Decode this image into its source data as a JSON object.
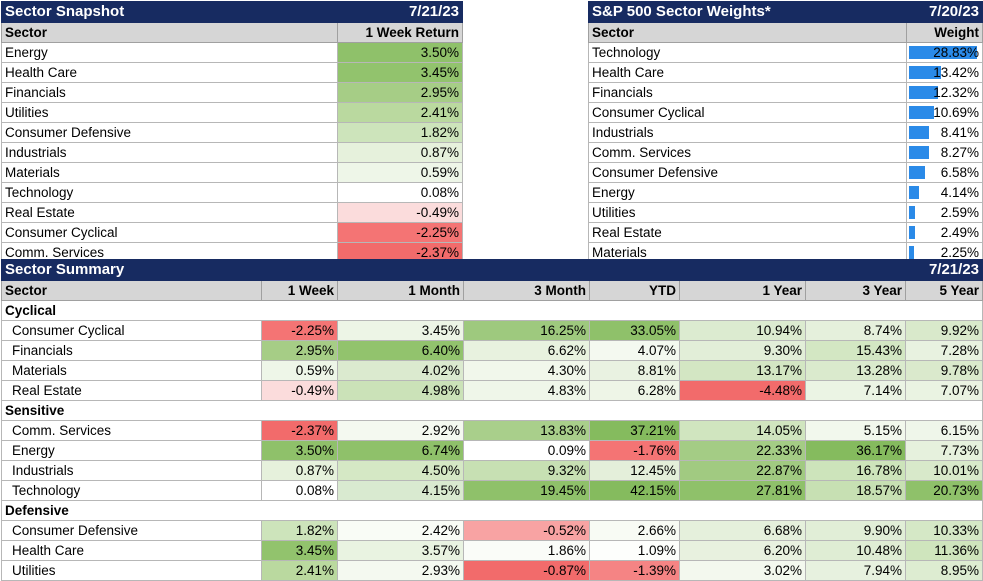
{
  "snapshot": {
    "title": "Sector Snapshot",
    "date": "7/21/23",
    "col_sector": "Sector",
    "col_return": "1 Week Return",
    "rows": [
      {
        "sector": "Energy",
        "value": "3.50%",
        "color": "#8fc16a"
      },
      {
        "sector": "Health Care",
        "value": "3.45%",
        "color": "#92c36d"
      },
      {
        "sector": "Financials",
        "value": "2.95%",
        "color": "#a6cd86"
      },
      {
        "sector": "Utilities",
        "value": "2.41%",
        "color": "#bad99f"
      },
      {
        "sector": "Consumer Defensive",
        "value": "1.82%",
        "color": "#cde4bb"
      },
      {
        "sector": "Industrials",
        "value": "0.87%",
        "color": "#e6f1dc"
      },
      {
        "sector": "Materials",
        "value": "0.59%",
        "color": "#eef6e8"
      },
      {
        "sector": "Technology",
        "value": "0.08%",
        "color": "#ffffff"
      },
      {
        "sector": "Real Estate",
        "value": "-0.49%",
        "color": "#fbdcdc"
      },
      {
        "sector": "Consumer Cyclical",
        "value": "-2.25%",
        "color": "#f47474"
      },
      {
        "sector": "Comm. Services",
        "value": "-2.37%",
        "color": "#f26b6b"
      }
    ]
  },
  "weights": {
    "title": "S&P 500 Sector Weights*",
    "date": "7/20/23",
    "col_sector": "Sector",
    "col_weight": "Weight",
    "max": 28.83,
    "rows": [
      {
        "sector": "Technology",
        "value": "28.83%",
        "num": 28.83
      },
      {
        "sector": "Health Care",
        "value": "13.42%",
        "num": 13.42
      },
      {
        "sector": "Financials",
        "value": "12.32%",
        "num": 12.32
      },
      {
        "sector": "Consumer Cyclical",
        "value": "10.69%",
        "num": 10.69
      },
      {
        "sector": "Industrials",
        "value": "8.41%",
        "num": 8.41
      },
      {
        "sector": "Comm. Services",
        "value": "8.27%",
        "num": 8.27
      },
      {
        "sector": "Consumer Defensive",
        "value": "6.58%",
        "num": 6.58
      },
      {
        "sector": "Energy",
        "value": "4.14%",
        "num": 4.14
      },
      {
        "sector": "Utilities",
        "value": "2.59%",
        "num": 2.59
      },
      {
        "sector": "Real Estate",
        "value": "2.49%",
        "num": 2.49
      },
      {
        "sector": "Materials",
        "value": "2.25%",
        "num": 2.25
      }
    ]
  },
  "summary": {
    "title": "Sector Summary",
    "date": "7/21/23",
    "columns": [
      "Sector",
      "1 Week",
      "1 Month",
      "3 Month",
      "YTD",
      "1 Year",
      "3 Year",
      "5 Year"
    ],
    "groups": [
      {
        "name": "Cyclical",
        "rows": [
          {
            "sector": "Consumer Cyclical",
            "cells": [
              [
                "-2.25%",
                "#f47474"
              ],
              [
                "3.45%",
                "#edf5e6"
              ],
              [
                "16.25%",
                "#9ec97e"
              ],
              [
                "33.05%",
                "#8fc16a"
              ],
              [
                "10.94%",
                "#dcebd0"
              ],
              [
                "8.74%",
                "#e5f0dc"
              ],
              [
                "9.92%",
                "#d9e9cb"
              ]
            ]
          },
          {
            "sector": "Financials",
            "cells": [
              [
                "2.95%",
                "#a6cd86"
              ],
              [
                "6.40%",
                "#92c36d"
              ],
              [
                "6.62%",
                "#e8f2df"
              ],
              [
                "4.07%",
                "#f4f9f0"
              ],
              [
                "9.30%",
                "#e2eed8"
              ],
              [
                "15.43%",
                "#d3e7c3"
              ],
              [
                "7.28%",
                "#e8f2e0"
              ]
            ]
          },
          {
            "sector": "Materials",
            "cells": [
              [
                "0.59%",
                "#eef6e8"
              ],
              [
                "4.02%",
                "#dbeacf"
              ],
              [
                "4.30%",
                "#f1f7eb"
              ],
              [
                "8.81%",
                "#e9f2e1"
              ],
              [
                "13.17%",
                "#d3e6c3"
              ],
              [
                "13.28%",
                "#daeacd"
              ],
              [
                "9.78%",
                "#dae9cc"
              ]
            ]
          },
          {
            "sector": "Real Estate",
            "cells": [
              [
                "-0.49%",
                "#fbdcdc"
              ],
              [
                "4.98%",
                "#cbe2b8"
              ],
              [
                "4.83%",
                "#eff6e9"
              ],
              [
                "6.28%",
                "#eef5e7"
              ],
              [
                "-4.48%",
                "#f26b6b"
              ],
              [
                "7.14%",
                "#ebf4e4"
              ],
              [
                "7.07%",
                "#eaf3e2"
              ]
            ]
          }
        ]
      },
      {
        "name": "Sensitive",
        "rows": [
          {
            "sector": "Comm. Services",
            "cells": [
              [
                "-2.37%",
                "#f26b6b"
              ],
              [
                "2.92%",
                "#f4f9f0"
              ],
              [
                "13.83%",
                "#a9cf8b"
              ],
              [
                "37.21%",
                "#85bb5e"
              ],
              [
                "14.05%",
                "#d0e5bf"
              ],
              [
                "5.15%",
                "#f2f8ed"
              ],
              [
                "6.15%",
                "#eff6ea"
              ]
            ]
          },
          {
            "sector": "Energy",
            "cells": [
              [
                "3.50%",
                "#8fc16a"
              ],
              [
                "6.74%",
                "#8fc16a"
              ],
              [
                "0.09%",
                "#ffffff"
              ],
              [
                "-1.76%",
                "#f47474"
              ],
              [
                "22.33%",
                "#a4cc85"
              ],
              [
                "36.17%",
                "#85bb5e"
              ],
              [
                "7.73%",
                "#e6f1dd"
              ]
            ]
          },
          {
            "sector": "Industrials",
            "cells": [
              [
                "0.87%",
                "#e6f1dc"
              ],
              [
                "4.50%",
                "#d5e8c5"
              ],
              [
                "9.32%",
                "#c7e0b3"
              ],
              [
                "12.45%",
                "#e4efda"
              ],
              [
                "22.87%",
                "#a1ca81"
              ],
              [
                "16.78%",
                "#cde4bb"
              ],
              [
                "10.01%",
                "#d8e9ca"
              ]
            ]
          },
          {
            "sector": "Technology",
            "cells": [
              [
                "0.08%",
                "#ffffff"
              ],
              [
                "4.15%",
                "#d9ead0"
              ],
              [
                "19.45%",
                "#8fc16a"
              ],
              [
                "42.15%",
                "#85bb5e"
              ],
              [
                "27.81%",
                "#8fc16a"
              ],
              [
                "18.57%",
                "#c7e0b3"
              ],
              [
                "20.73%",
                "#8fc16a"
              ]
            ]
          }
        ]
      },
      {
        "name": "Defensive",
        "rows": [
          {
            "sector": "Consumer Defensive",
            "cells": [
              [
                "1.82%",
                "#cde4bb"
              ],
              [
                "2.42%",
                "#f9fcf6"
              ],
              [
                "-0.52%",
                "#f8a3a3"
              ],
              [
                "2.66%",
                "#f8fbf4"
              ],
              [
                "6.68%",
                "#e5f0dc"
              ],
              [
                "9.90%",
                "#e1eed7"
              ],
              [
                "10.33%",
                "#d5e8c6"
              ]
            ]
          },
          {
            "sector": "Health Care",
            "cells": [
              [
                "3.45%",
                "#92c36d"
              ],
              [
                "3.57%",
                "#e9f3e1"
              ],
              [
                "1.86%",
                "#fafcf8"
              ],
              [
                "1.09%",
                "#fdfefc"
              ],
              [
                "6.20%",
                "#e8f1df"
              ],
              [
                "10.48%",
                "#dfedd4"
              ],
              [
                "11.36%",
                "#cfe5bd"
              ]
            ]
          },
          {
            "sector": "Utilities",
            "cells": [
              [
                "2.41%",
                "#bad99f"
              ],
              [
                "2.93%",
                "#f4f9f0"
              ],
              [
                "-0.87%",
                "#f26b6b"
              ],
              [
                "-1.39%",
                "#f58484"
              ],
              [
                "3.02%",
                "#f3f8ee"
              ],
              [
                "7.94%",
                "#e7f1df"
              ],
              [
                "8.95%",
                "#ddecd1"
              ]
            ]
          }
        ]
      }
    ]
  }
}
